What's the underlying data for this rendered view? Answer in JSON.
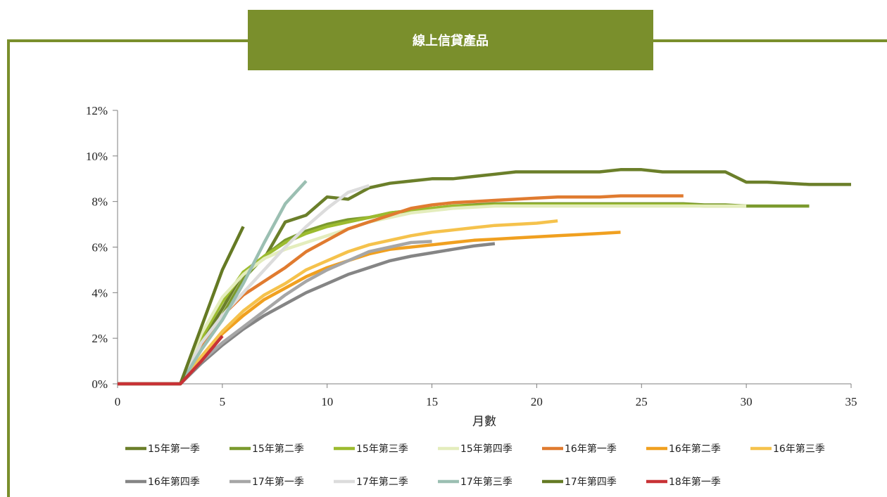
{
  "banner": {
    "title": "線上信貸產品"
  },
  "chart_data": {
    "type": "line",
    "xlabel": "月數",
    "ylabel": "",
    "xlim": [
      0,
      35
    ],
    "ylim": [
      0,
      12
    ],
    "x_ticks": [
      0,
      5,
      10,
      15,
      20,
      25,
      30,
      35
    ],
    "y_ticks": [
      0,
      2,
      4,
      6,
      8,
      10,
      12
    ],
    "y_tick_labels": [
      "0%",
      "2%",
      "4%",
      "6%",
      "8%",
      "10%",
      "12%"
    ],
    "y_unit": "%",
    "grid": false,
    "legend_position": "bottom",
    "series": [
      {
        "name": "15年第一季",
        "color": "#6b7f2a",
        "points": [
          [
            0,
            0
          ],
          [
            3,
            0
          ],
          [
            4,
            1.8
          ],
          [
            5,
            3.3
          ],
          [
            6,
            4.9
          ],
          [
            7,
            5.5
          ],
          [
            8,
            7.1
          ],
          [
            9,
            7.4
          ],
          [
            10,
            8.2
          ],
          [
            11,
            8.1
          ],
          [
            12,
            8.6
          ],
          [
            13,
            8.8
          ],
          [
            14,
            8.9
          ],
          [
            15,
            9.0
          ],
          [
            16,
            9.0
          ],
          [
            17,
            9.1
          ],
          [
            18,
            9.2
          ],
          [
            19,
            9.3
          ],
          [
            20,
            9.3
          ],
          [
            21,
            9.3
          ],
          [
            22,
            9.3
          ],
          [
            23,
            9.3
          ],
          [
            24,
            9.4
          ],
          [
            25,
            9.4
          ],
          [
            26,
            9.3
          ],
          [
            27,
            9.3
          ],
          [
            28,
            9.3
          ],
          [
            29,
            9.3
          ],
          [
            30,
            8.85
          ],
          [
            31,
            8.85
          ],
          [
            32,
            8.8
          ],
          [
            33,
            8.75
          ],
          [
            34,
            8.75
          ],
          [
            35,
            8.75
          ]
        ]
      },
      {
        "name": "15年第二季",
        "color": "#7b9a2e",
        "points": [
          [
            0,
            0
          ],
          [
            3,
            0
          ],
          [
            4,
            1.6
          ],
          [
            5,
            3.0
          ],
          [
            6,
            4.6
          ],
          [
            7,
            5.6
          ],
          [
            8,
            6.3
          ],
          [
            9,
            6.7
          ],
          [
            10,
            7.0
          ],
          [
            11,
            7.2
          ],
          [
            12,
            7.3
          ],
          [
            13,
            7.5
          ],
          [
            14,
            7.6
          ],
          [
            15,
            7.7
          ],
          [
            16,
            7.8
          ],
          [
            17,
            7.85
          ],
          [
            18,
            7.9
          ],
          [
            19,
            7.9
          ],
          [
            20,
            7.9
          ],
          [
            21,
            7.9
          ],
          [
            22,
            7.9
          ],
          [
            23,
            7.9
          ],
          [
            24,
            7.9
          ],
          [
            25,
            7.9
          ],
          [
            26,
            7.9
          ],
          [
            27,
            7.9
          ],
          [
            28,
            7.85
          ],
          [
            29,
            7.85
          ],
          [
            30,
            7.8
          ],
          [
            31,
            7.8
          ],
          [
            32,
            7.8
          ],
          [
            33,
            7.8
          ]
        ]
      },
      {
        "name": "15年第三季",
        "color": "#9cbb2f",
        "points": [
          [
            0,
            0
          ],
          [
            3,
            0
          ],
          [
            4,
            2.0
          ],
          [
            5,
            3.6
          ],
          [
            6,
            4.9
          ],
          [
            7,
            5.6
          ],
          [
            8,
            6.2
          ],
          [
            9,
            6.6
          ],
          [
            10,
            6.9
          ],
          [
            11,
            7.1
          ],
          [
            12,
            7.3
          ],
          [
            13,
            7.5
          ],
          [
            14,
            7.6
          ],
          [
            15,
            7.7
          ],
          [
            16,
            7.8
          ],
          [
            17,
            7.8
          ],
          [
            18,
            7.85
          ],
          [
            19,
            7.85
          ],
          [
            20,
            7.85
          ],
          [
            21,
            7.85
          ],
          [
            22,
            7.85
          ],
          [
            23,
            7.85
          ],
          [
            24,
            7.85
          ],
          [
            25,
            7.85
          ],
          [
            26,
            7.85
          ],
          [
            27,
            7.85
          ],
          [
            28,
            7.8
          ],
          [
            29,
            7.8
          ],
          [
            30,
            7.8
          ]
        ]
      },
      {
        "name": "15年第四季",
        "color": "#e4edbd",
        "points": [
          [
            0,
            0
          ],
          [
            3,
            0
          ],
          [
            4,
            2.2
          ],
          [
            5,
            3.8
          ],
          [
            6,
            4.8
          ],
          [
            7,
            5.5
          ],
          [
            8,
            5.9
          ],
          [
            9,
            6.2
          ],
          [
            10,
            6.5
          ],
          [
            11,
            6.8
          ],
          [
            12,
            7.1
          ],
          [
            13,
            7.3
          ],
          [
            14,
            7.5
          ],
          [
            15,
            7.6
          ],
          [
            16,
            7.7
          ],
          [
            17,
            7.75
          ],
          [
            18,
            7.8
          ],
          [
            19,
            7.8
          ],
          [
            20,
            7.8
          ],
          [
            21,
            7.8
          ],
          [
            22,
            7.8
          ],
          [
            23,
            7.8
          ],
          [
            24,
            7.8
          ],
          [
            25,
            7.8
          ],
          [
            26,
            7.8
          ],
          [
            27,
            7.8
          ],
          [
            28,
            7.8
          ],
          [
            29,
            7.8
          ],
          [
            30,
            7.8
          ]
        ]
      },
      {
        "name": "16年第一季",
        "color": "#e07b30",
        "points": [
          [
            0,
            0
          ],
          [
            3,
            0
          ],
          [
            4,
            1.7
          ],
          [
            5,
            3.0
          ],
          [
            6,
            3.9
          ],
          [
            7,
            4.5
          ],
          [
            8,
            5.1
          ],
          [
            9,
            5.8
          ],
          [
            10,
            6.3
          ],
          [
            11,
            6.8
          ],
          [
            12,
            7.1
          ],
          [
            13,
            7.4
          ],
          [
            14,
            7.7
          ],
          [
            15,
            7.85
          ],
          [
            16,
            7.95
          ],
          [
            17,
            8.0
          ],
          [
            18,
            8.05
          ],
          [
            19,
            8.1
          ],
          [
            20,
            8.15
          ],
          [
            21,
            8.2
          ],
          [
            22,
            8.2
          ],
          [
            23,
            8.2
          ],
          [
            24,
            8.25
          ],
          [
            25,
            8.25
          ],
          [
            26,
            8.25
          ],
          [
            27,
            8.25
          ]
        ]
      },
      {
        "name": "16年第二季",
        "color": "#f0a020",
        "points": [
          [
            0,
            0
          ],
          [
            3,
            0
          ],
          [
            4,
            1.1
          ],
          [
            5,
            2.2
          ],
          [
            6,
            3.0
          ],
          [
            7,
            3.7
          ],
          [
            8,
            4.2
          ],
          [
            9,
            4.7
          ],
          [
            10,
            5.1
          ],
          [
            11,
            5.4
          ],
          [
            12,
            5.7
          ],
          [
            13,
            5.9
          ],
          [
            14,
            6.0
          ],
          [
            15,
            6.1
          ],
          [
            16,
            6.2
          ],
          [
            17,
            6.3
          ],
          [
            18,
            6.35
          ],
          [
            19,
            6.4
          ],
          [
            20,
            6.45
          ],
          [
            21,
            6.5
          ],
          [
            22,
            6.55
          ],
          [
            23,
            6.6
          ],
          [
            24,
            6.65
          ]
        ]
      },
      {
        "name": "16年第三季",
        "color": "#f5c24c",
        "points": [
          [
            0,
            0
          ],
          [
            3,
            0
          ],
          [
            4,
            1.2
          ],
          [
            5,
            2.3
          ],
          [
            6,
            3.2
          ],
          [
            7,
            3.9
          ],
          [
            8,
            4.4
          ],
          [
            9,
            5.0
          ],
          [
            10,
            5.4
          ],
          [
            11,
            5.8
          ],
          [
            12,
            6.1
          ],
          [
            13,
            6.3
          ],
          [
            14,
            6.5
          ],
          [
            15,
            6.65
          ],
          [
            16,
            6.75
          ],
          [
            17,
            6.85
          ],
          [
            18,
            6.95
          ],
          [
            19,
            7.0
          ],
          [
            20,
            7.05
          ],
          [
            21,
            7.15
          ]
        ]
      },
      {
        "name": "16年第四季",
        "color": "#858585",
        "points": [
          [
            0,
            0
          ],
          [
            3,
            0
          ],
          [
            4,
            0.9
          ],
          [
            5,
            1.7
          ],
          [
            6,
            2.4
          ],
          [
            7,
            3.0
          ],
          [
            8,
            3.5
          ],
          [
            9,
            4.0
          ],
          [
            10,
            4.4
          ],
          [
            11,
            4.8
          ],
          [
            12,
            5.1
          ],
          [
            13,
            5.4
          ],
          [
            14,
            5.6
          ],
          [
            15,
            5.75
          ],
          [
            16,
            5.9
          ],
          [
            17,
            6.05
          ],
          [
            18,
            6.15
          ]
        ]
      },
      {
        "name": "17年第一季",
        "color": "#a6a6a6",
        "points": [
          [
            0,
            0
          ],
          [
            3,
            0
          ],
          [
            4,
            1.0
          ],
          [
            5,
            1.8
          ],
          [
            6,
            2.5
          ],
          [
            7,
            3.2
          ],
          [
            8,
            3.9
          ],
          [
            9,
            4.5
          ],
          [
            10,
            5.0
          ],
          [
            11,
            5.4
          ],
          [
            12,
            5.8
          ],
          [
            13,
            6.0
          ],
          [
            14,
            6.2
          ],
          [
            15,
            6.25
          ]
        ]
      },
      {
        "name": "17年第二季",
        "color": "#dcdcdc",
        "points": [
          [
            0,
            0
          ],
          [
            3,
            0
          ],
          [
            4,
            1.8
          ],
          [
            5,
            3.0
          ],
          [
            6,
            4.0
          ],
          [
            7,
            5.0
          ],
          [
            8,
            6.0
          ],
          [
            9,
            6.9
          ],
          [
            10,
            7.7
          ],
          [
            11,
            8.4
          ],
          [
            12,
            8.7
          ]
        ]
      },
      {
        "name": "17年第三季",
        "color": "#9bbfb2",
        "points": [
          [
            0,
            0
          ],
          [
            3,
            0
          ],
          [
            4,
            1.5
          ],
          [
            5,
            2.8
          ],
          [
            6,
            4.4
          ],
          [
            7,
            6.2
          ],
          [
            8,
            7.9
          ],
          [
            9,
            8.9
          ]
        ]
      },
      {
        "name": "17年第四季",
        "color": "#657a24",
        "points": [
          [
            0,
            0
          ],
          [
            3,
            0
          ],
          [
            4,
            2.5
          ],
          [
            5,
            5.0
          ],
          [
            6,
            6.9
          ]
        ]
      },
      {
        "name": "18年第一季",
        "color": "#c83236",
        "points": [
          [
            0,
            0
          ],
          [
            3,
            0
          ],
          [
            4,
            1.0
          ],
          [
            5,
            2.1
          ]
        ]
      }
    ]
  }
}
